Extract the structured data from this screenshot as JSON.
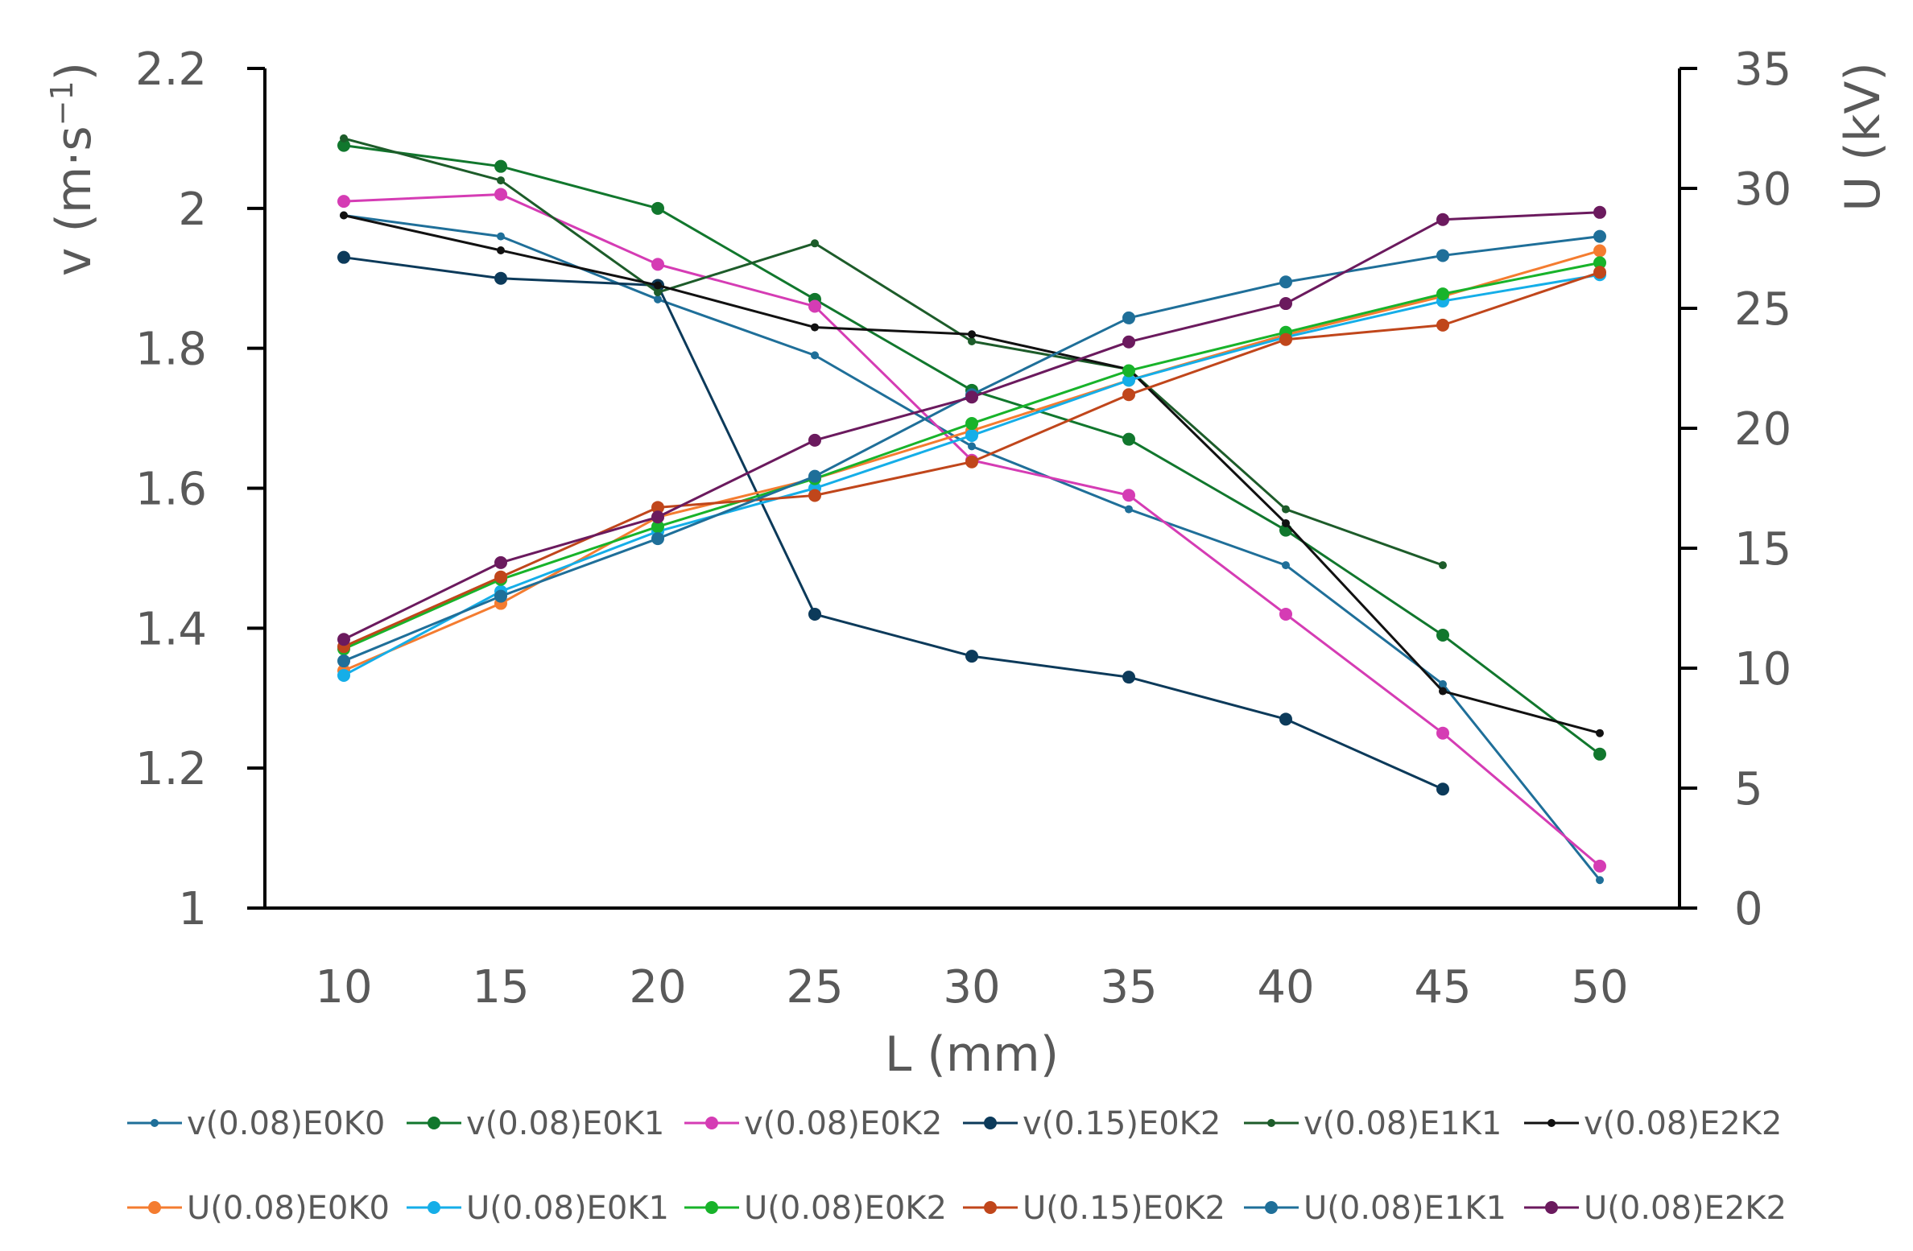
{
  "chart_data": {
    "type": "line",
    "x": [
      10,
      15,
      20,
      25,
      30,
      35,
      40,
      45,
      50
    ],
    "xlabel": "L (mm)",
    "ylabel_left_main": "v (m·s",
    "ylabel_left_sup": "−1",
    "ylabel_left_close": ")",
    "ylabel_right": "U (kV)",
    "ylim_left": [
      1,
      2.2
    ],
    "ylim_right": [
      0,
      35
    ],
    "xticks": [
      "10",
      "15",
      "20",
      "25",
      "30",
      "35",
      "40",
      "45",
      "50"
    ],
    "yticks_left": [
      "1",
      "1.2",
      "1.4",
      "1.6",
      "1.8",
      "2",
      "2.2"
    ],
    "yticks_right": [
      "0",
      "5",
      "10",
      "15",
      "20",
      "25",
      "30",
      "35"
    ],
    "series": [
      {
        "name": "v(0.08)E0K0",
        "axis": "left",
        "color": "#1f6f99",
        "marker": "small",
        "values": [
          1.99,
          1.96,
          1.87,
          1.79,
          1.66,
          1.57,
          1.49,
          1.32,
          1.04
        ]
      },
      {
        "name": "v(0.08)E0K1",
        "axis": "left",
        "color": "#11772d",
        "marker": "large",
        "values": [
          2.09,
          2.06,
          2.0,
          1.87,
          1.74,
          1.67,
          1.54,
          1.39,
          1.22
        ]
      },
      {
        "name": "v(0.08)E0K2",
        "axis": "left",
        "color": "#d53cb4",
        "marker": "large",
        "values": [
          2.01,
          2.02,
          1.92,
          1.86,
          1.64,
          1.59,
          1.42,
          1.25,
          1.06
        ]
      },
      {
        "name": "v(0.15)E0K2",
        "axis": "left",
        "color": "#0c3a5a",
        "marker": "large",
        "values": [
          1.93,
          1.9,
          1.89,
          1.42,
          1.36,
          1.33,
          1.27,
          1.17,
          null
        ]
      },
      {
        "name": "v(0.08)E1K1",
        "axis": "left",
        "color": "#1d5c2a",
        "marker": "small",
        "values": [
          2.1,
          2.04,
          1.88,
          1.95,
          1.81,
          1.77,
          1.57,
          1.49,
          null
        ]
      },
      {
        "name": "v(0.08)E2K2",
        "axis": "left",
        "color": "#111111",
        "marker": "small",
        "values": [
          1.99,
          1.94,
          1.89,
          1.83,
          1.82,
          1.77,
          1.55,
          1.31,
          1.25
        ]
      },
      {
        "name": "U(0.08)E0K0",
        "axis": "right",
        "color": "#f47c30",
        "marker": "large",
        "values": [
          9.9,
          12.7,
          16.3,
          17.9,
          19.9,
          22.0,
          23.9,
          25.5,
          27.4
        ]
      },
      {
        "name": "U(0.08)E0K1",
        "axis": "right",
        "color": "#15aee8",
        "marker": "large",
        "values": [
          9.7,
          13.2,
          15.7,
          17.5,
          19.7,
          22.0,
          23.8,
          25.3,
          26.4
        ]
      },
      {
        "name": "U(0.08)E0K2",
        "axis": "right",
        "color": "#18b32a",
        "marker": "large",
        "values": [
          10.8,
          13.7,
          15.9,
          17.9,
          20.2,
          22.4,
          24.0,
          25.6,
          26.9
        ]
      },
      {
        "name": "U(0.15)E0K2",
        "axis": "right",
        "color": "#c0461b",
        "marker": "large",
        "values": [
          10.9,
          13.8,
          16.7,
          17.2,
          18.6,
          21.4,
          23.7,
          24.3,
          26.5
        ]
      },
      {
        "name": "U(0.08)E1K1",
        "axis": "right",
        "color": "#1f6f99",
        "marker": "large",
        "values": [
          10.3,
          13.0,
          15.4,
          18.0,
          21.4,
          24.6,
          26.1,
          27.2,
          28.0
        ]
      },
      {
        "name": "U(0.08)E2K2",
        "axis": "right",
        "color": "#6b1a5e",
        "marker": "large",
        "values": [
          11.2,
          14.4,
          16.3,
          19.5,
          21.3,
          23.6,
          25.2,
          28.7,
          29.0
        ]
      }
    ],
    "legend_position": "bottom",
    "grid": false
  }
}
